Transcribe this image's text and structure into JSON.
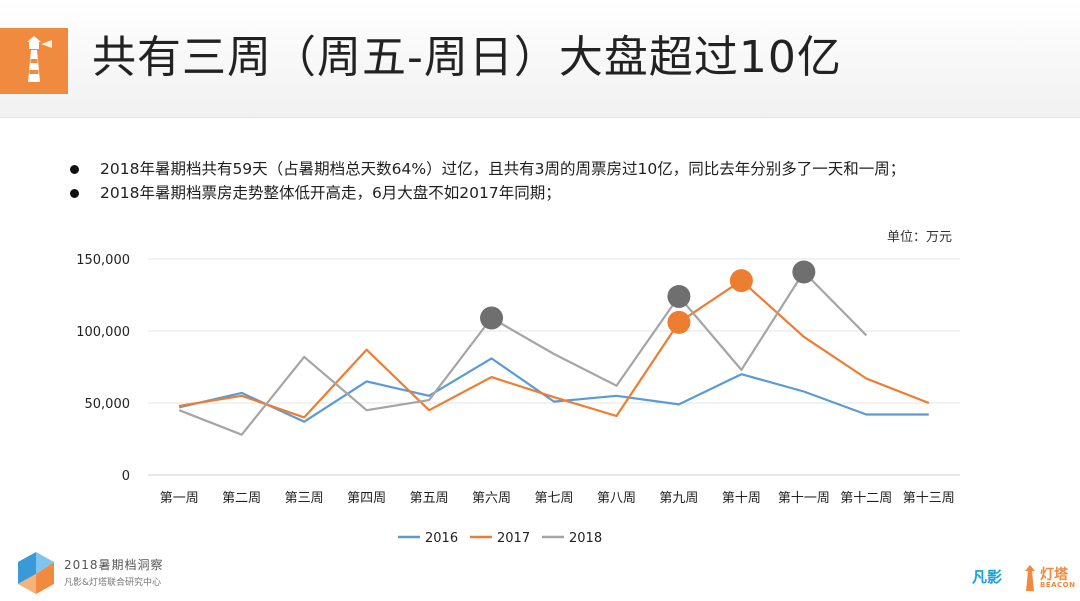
{
  "header": {
    "title": "共有三周（周五-周日）大盘超过10亿",
    "logo_icon": "lighthouse-icon",
    "accent_color": "#f08a3e"
  },
  "bullets": [
    "2018年暑期档共有59天（占暑期档总天数64%）过亿，且共有3周的周票房过10亿，同比去年分别多了一天和一周；",
    "2018年暑期档票房走势整体低开高走，6月大盘不如2017年同期；"
  ],
  "unit_label": "单位：万元",
  "chart_data": {
    "type": "line",
    "title": "",
    "xlabel": "",
    "ylabel": "",
    "ylim": [
      0,
      150000
    ],
    "yticks": [
      0,
      50000,
      100000,
      150000
    ],
    "ytick_labels": [
      "0",
      "50,000",
      "100,000",
      "150,000"
    ],
    "grid": true,
    "legend_position": "bottom",
    "categories": [
      "第一周",
      "第二周",
      "第三周",
      "第四周",
      "第五周",
      "第六周",
      "第七周",
      "第八周",
      "第九周",
      "第十周",
      "第十一周",
      "第十二周",
      "第十三周"
    ],
    "series": [
      {
        "name": "2016",
        "color": "#5b9bd5",
        "values": [
          47000,
          57000,
          37000,
          65000,
          55000,
          81000,
          51000,
          55000,
          49000,
          70000,
          58000,
          42000,
          42000
        ]
      },
      {
        "name": "2017",
        "color": "#ed7d31",
        "values": [
          48000,
          55000,
          40000,
          87000,
          45000,
          68000,
          54000,
          41000,
          106000,
          135000,
          96000,
          67000,
          50000
        ]
      },
      {
        "name": "2018",
        "color": "#a5a5a5",
        "values": [
          45000,
          28000,
          82000,
          45000,
          52000,
          109000,
          84000,
          62000,
          124000,
          73000,
          141000,
          97000,
          null
        ]
      }
    ],
    "highlights": [
      {
        "series": "2018",
        "category": "第六周",
        "value": 109000,
        "color": "#6f6f6f"
      },
      {
        "series": "2018",
        "category": "第九周",
        "value": 124000,
        "color": "#6f6f6f"
      },
      {
        "series": "2018",
        "category": "第十一周",
        "value": 141000,
        "color": "#6f6f6f"
      },
      {
        "series": "2017",
        "category": "第九周",
        "value": 106000,
        "color": "#ed7d31"
      },
      {
        "series": "2017",
        "category": "第十周",
        "value": 135000,
        "color": "#ed7d31"
      }
    ]
  },
  "footer": {
    "report_title": "2018暑期档洞察",
    "report_subtitle": "凡影&灯塔联合研究中心",
    "brand_left": "凡影",
    "brand_right": "灯塔",
    "brand_right_sub": "BEACON"
  }
}
